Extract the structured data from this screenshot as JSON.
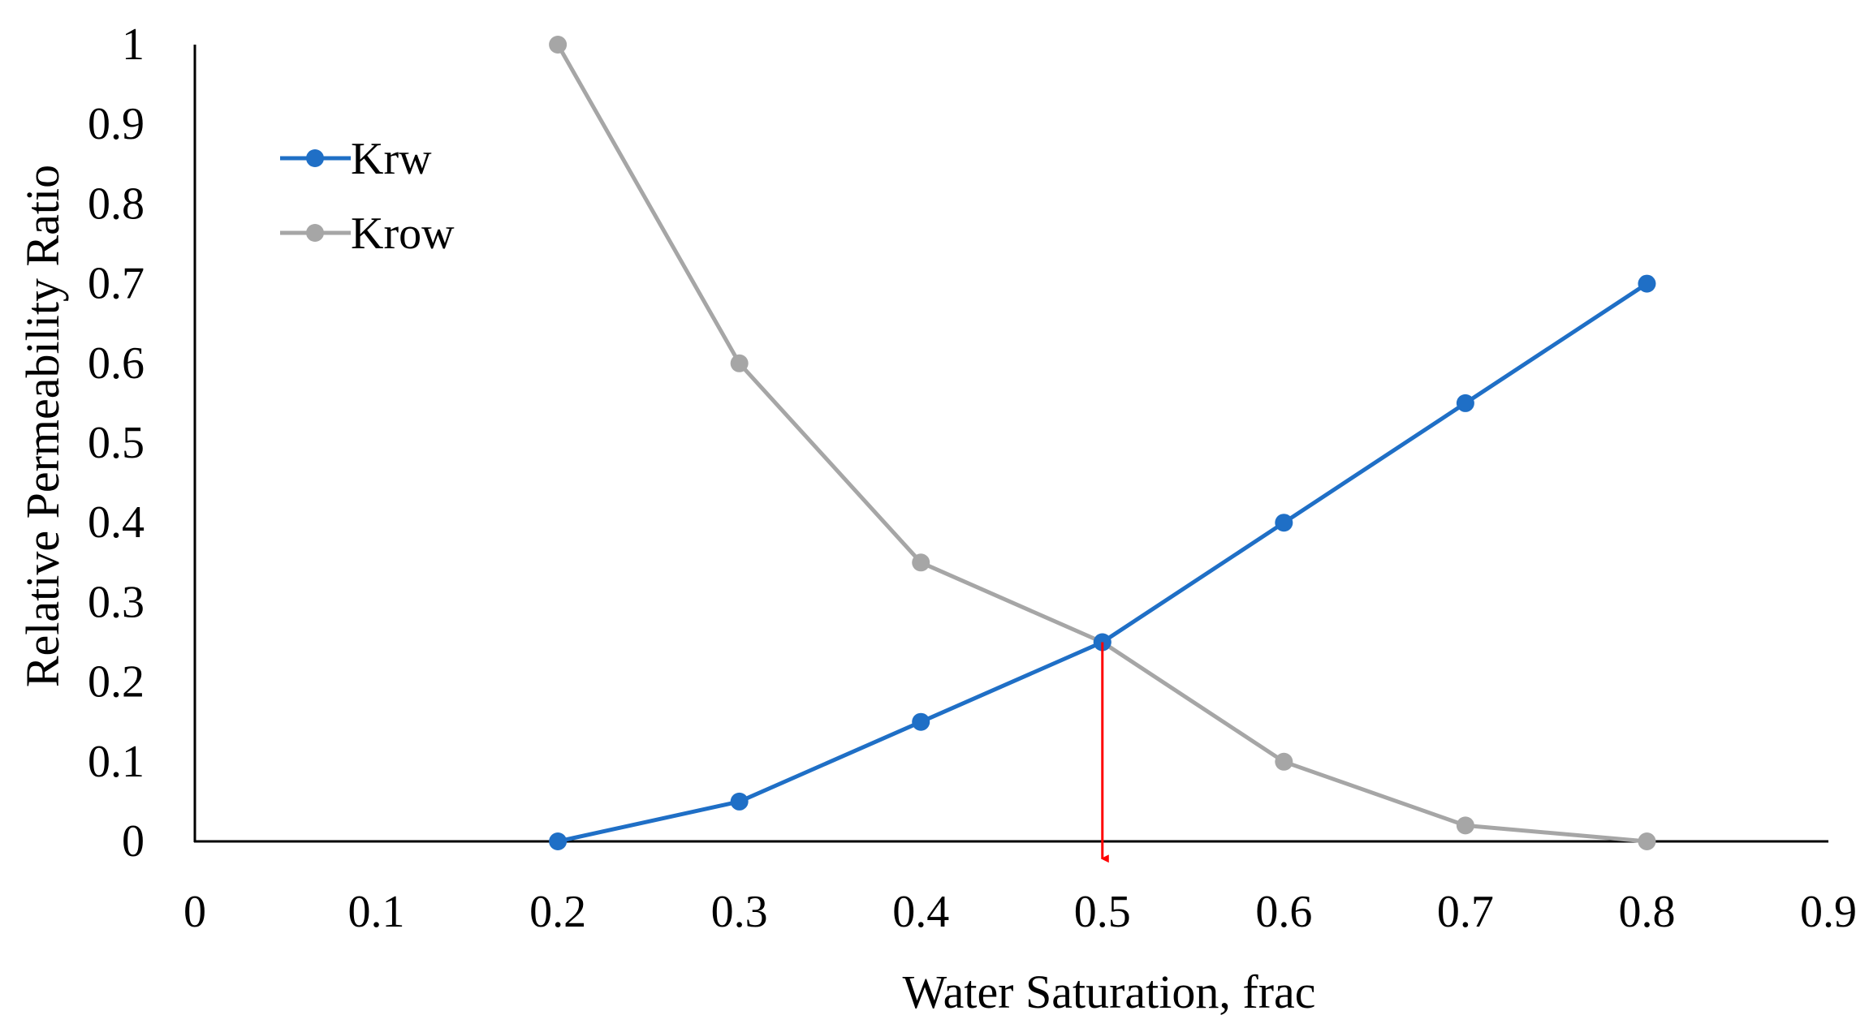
{
  "chart_data": {
    "type": "line",
    "title": "",
    "xlabel": "Water Saturation, frac",
    "ylabel": "Relative Permeability Ratio",
    "xlim": [
      0,
      0.9
    ],
    "ylim": [
      0,
      1
    ],
    "x_ticks": [
      0,
      0.1,
      0.2,
      0.3,
      0.4,
      0.5,
      0.6,
      0.7,
      0.8,
      0.9
    ],
    "x_tick_labels": [
      "0",
      "0.1",
      "0.2",
      "0.3",
      "0.4",
      "0.5",
      "0.6",
      "0.7",
      "0.8",
      "0.9"
    ],
    "y_ticks": [
      0,
      0.1,
      0.2,
      0.3,
      0.4,
      0.5,
      0.6,
      0.7,
      0.8,
      0.9,
      1
    ],
    "y_tick_labels": [
      "0",
      "0.1",
      "0.2",
      "0.3",
      "0.4",
      "0.5",
      "0.6",
      "0.7",
      "0.8",
      "0.9",
      "1"
    ],
    "grid": false,
    "legend_position": "top-left",
    "series": [
      {
        "name": "Krw",
        "color": "#1f6fc6",
        "x": [
          0.2,
          0.3,
          0.4,
          0.5,
          0.6,
          0.7,
          0.8
        ],
        "y": [
          0,
          0.05,
          0.15,
          0.25,
          0.4,
          0.55,
          0.7
        ]
      },
      {
        "name": "Krow",
        "color": "#a6a6a6",
        "x": [
          0.2,
          0.3,
          0.4,
          0.5,
          0.6,
          0.7,
          0.8
        ],
        "y": [
          1,
          0.6,
          0.35,
          0.25,
          0.1,
          0.02,
          0
        ]
      }
    ],
    "annotations": [
      {
        "type": "arrow",
        "color": "#ff0000",
        "x": 0.5,
        "y_from": 0.25,
        "y_to": -0.04
      }
    ]
  }
}
